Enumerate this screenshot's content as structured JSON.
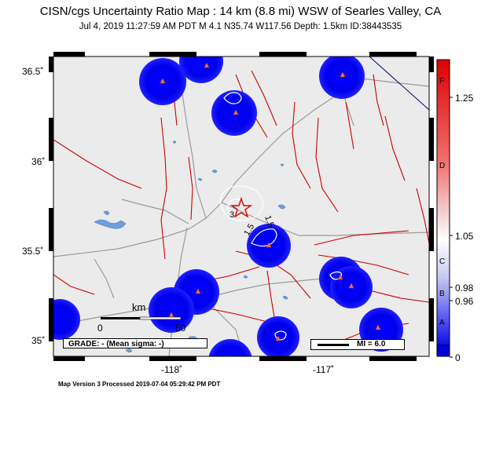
{
  "title": "CISN/cgs Uncertainty Ratio Map : 14 km (8.8 mi) WSW of Searles Valley, CA",
  "subtitle": "Jul  4, 2019 11:27:59 AM PDT   M 4.1   N35.74 W117.56   Depth: 1.5km   ID:38443535",
  "lat_labels": [
    "36.5˚",
    "36˚",
    "35.5˚",
    "35˚"
  ],
  "lon_labels": [
    "-118˚",
    "-117˚"
  ],
  "scale": {
    "unit": "km",
    "start": "0",
    "end": "50"
  },
  "grade": "GRADE: - (Mean sigma: -)",
  "mi_legend": "MI = 6.0",
  "contour_labels": [
    "3",
    "1.5",
    "1.5"
  ],
  "colorbar": {
    "ticks": [
      "1.25",
      "1.05",
      "0.98",
      "0.96",
      "0"
    ],
    "letters": [
      "F",
      "D",
      "C",
      "B",
      "A"
    ]
  },
  "footer": "Map Version 3 Processed 2019-07-04 05:29:42 PM PDT",
  "colors": {
    "station_halo": "#0000dd",
    "fault": "#cc0000",
    "road": "#9a9a9a",
    "water": "#6f9fd8",
    "land": "#ebebeb"
  }
}
